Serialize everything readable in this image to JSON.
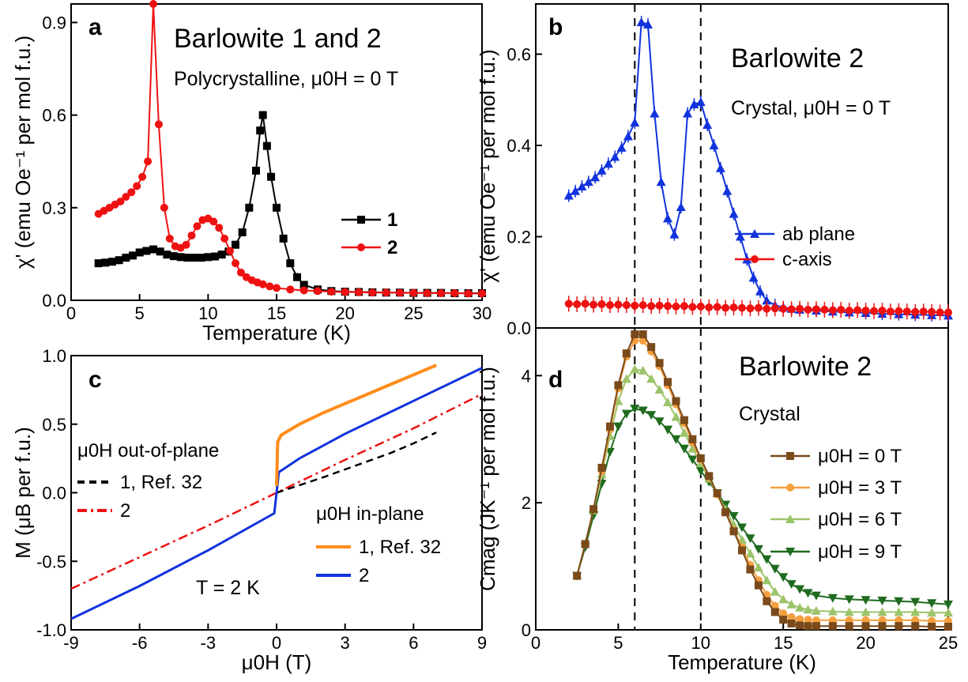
{
  "colors": {
    "red": "#ee1111",
    "black": "#000000",
    "blue": "#1133dd",
    "orange": "#ff8c1a",
    "brown": "#7a4a1a",
    "light_orange": "#f5a040",
    "light_green": "#9cc46a",
    "dark_green": "#1f6b1f"
  },
  "chart_data": [
    {
      "panel": "a",
      "type": "line",
      "title": "Barlowite 1 and 2",
      "subtitle": "Polycrystalline,  μ0H = 0 T",
      "xlabel": "Temperature (K)",
      "ylabel": "χ' (emu Oe⁻¹ per mol f.u.)",
      "xlim": [
        0,
        30
      ],
      "ylim": [
        0,
        0.96
      ],
      "xticks": [
        0,
        5,
        10,
        15,
        20,
        25,
        30
      ],
      "yticks": [
        0.0,
        0.3,
        0.6,
        0.9
      ],
      "xtick_labels": [
        "0",
        "5",
        "10",
        "15",
        "20",
        "25",
        "30"
      ],
      "ytick_labels": [
        "0.0",
        "0.3",
        "0.6",
        "0.9"
      ],
      "legend_position": "right",
      "series": [
        {
          "name": "1",
          "color": "black",
          "marker": "square",
          "x": [
            2,
            2.5,
            3,
            3.5,
            4,
            4.5,
            5,
            5.5,
            6,
            6.5,
            7,
            7.5,
            8,
            8.5,
            9,
            9.5,
            10,
            10.5,
            11,
            11.5,
            12,
            12.5,
            13,
            13.5,
            13.8,
            14,
            14.3,
            14.6,
            15,
            15.5,
            16,
            16.5,
            17,
            18,
            19,
            20,
            21,
            22,
            23,
            24,
            25,
            26,
            27,
            28,
            29,
            30
          ],
          "y": [
            0.12,
            0.122,
            0.125,
            0.13,
            0.138,
            0.145,
            0.155,
            0.16,
            0.165,
            0.158,
            0.148,
            0.143,
            0.14,
            0.138,
            0.138,
            0.138,
            0.14,
            0.142,
            0.148,
            0.158,
            0.18,
            0.22,
            0.3,
            0.42,
            0.55,
            0.6,
            0.5,
            0.4,
            0.3,
            0.2,
            0.12,
            0.075,
            0.05,
            0.035,
            0.03,
            0.028,
            0.027,
            0.026,
            0.025,
            0.025,
            0.024,
            0.024,
            0.024,
            0.023,
            0.023,
            0.023
          ]
        },
        {
          "name": "2",
          "color": "red",
          "marker": "circle",
          "x": [
            2,
            2.4,
            2.8,
            3.2,
            3.6,
            4,
            4.4,
            4.8,
            5.2,
            5.6,
            6,
            6.4,
            6.8,
            7.2,
            7.6,
            8,
            8.4,
            8.8,
            9.2,
            9.6,
            10,
            10.4,
            10.8,
            11.2,
            11.6,
            12,
            12.4,
            12.8,
            13.2,
            13.6,
            14,
            14.5,
            15,
            16,
            17,
            18,
            19,
            20,
            21,
            22,
            23,
            24,
            25,
            26,
            27,
            28,
            29,
            30
          ],
          "y": [
            0.28,
            0.29,
            0.3,
            0.31,
            0.32,
            0.335,
            0.35,
            0.37,
            0.4,
            0.45,
            0.96,
            0.57,
            0.3,
            0.2,
            0.175,
            0.17,
            0.18,
            0.21,
            0.24,
            0.26,
            0.265,
            0.255,
            0.235,
            0.2,
            0.16,
            0.12,
            0.09,
            0.075,
            0.065,
            0.058,
            0.052,
            0.045,
            0.04,
            0.035,
            0.032,
            0.03,
            0.028,
            0.027,
            0.026,
            0.025,
            0.025,
            0.024,
            0.024,
            0.023,
            0.023,
            0.023,
            0.022,
            0.022
          ]
        }
      ]
    },
    {
      "panel": "b",
      "type": "line",
      "title": "Barlowite 2",
      "subtitle": "Crystal,  μ0H = 0 T",
      "xlabel": "",
      "ylabel": "χ' (emu Oe⁻¹ per mol f.u.)",
      "xlim": [
        0,
        25
      ],
      "ylim": [
        0,
        0.71
      ],
      "yticks": [
        0.0,
        0.2,
        0.4,
        0.6
      ],
      "ytick_labels": [
        "0.0",
        "0.2",
        "0.4",
        "0.6"
      ],
      "dashed_vlines": [
        6,
        10
      ],
      "legend_position": "bottom-right",
      "series": [
        {
          "name": "ab plane",
          "color": "blue",
          "marker": "triangle",
          "x": [
            2,
            2.4,
            2.8,
            3.2,
            3.6,
            4,
            4.4,
            4.8,
            5.2,
            5.6,
            6,
            6.4,
            6.8,
            7.2,
            7.6,
            8,
            8.4,
            8.8,
            9.2,
            9.6,
            10,
            10.4,
            10.8,
            11.2,
            11.6,
            12,
            12.4,
            12.8,
            13.2,
            13.6,
            14,
            14.5,
            15,
            15.5,
            16,
            17,
            18,
            19,
            20,
            21,
            22,
            23,
            24,
            25
          ],
          "y": [
            0.29,
            0.3,
            0.31,
            0.32,
            0.33,
            0.345,
            0.36,
            0.375,
            0.395,
            0.42,
            0.45,
            0.67,
            0.665,
            0.47,
            0.32,
            0.24,
            0.205,
            0.265,
            0.47,
            0.49,
            0.495,
            0.445,
            0.4,
            0.35,
            0.3,
            0.25,
            0.2,
            0.15,
            0.11,
            0.08,
            0.06,
            0.05,
            0.045,
            0.042,
            0.04,
            0.038,
            0.036,
            0.034,
            0.033,
            0.031,
            0.03,
            0.029,
            0.028,
            0.027
          ]
        },
        {
          "name": "c-axis",
          "color": "red",
          "marker": "circle",
          "x": [
            2,
            2.5,
            3,
            3.5,
            4,
            4.5,
            5,
            5.5,
            6,
            6.5,
            7,
            7.5,
            8,
            8.5,
            9,
            9.5,
            10,
            10.5,
            11,
            11.5,
            12,
            12.5,
            13,
            13.5,
            14,
            14.5,
            15,
            15.5,
            16,
            16.5,
            17,
            17.5,
            18,
            18.5,
            19,
            19.5,
            20,
            20.5,
            21,
            21.5,
            22,
            22.5,
            23,
            23.5,
            24,
            24.5,
            25
          ],
          "y": [
            0.053,
            0.052,
            0.053,
            0.051,
            0.052,
            0.05,
            0.051,
            0.05,
            0.049,
            0.05,
            0.048,
            0.049,
            0.048,
            0.047,
            0.048,
            0.046,
            0.047,
            0.045,
            0.046,
            0.044,
            0.045,
            0.044,
            0.043,
            0.044,
            0.042,
            0.043,
            0.042,
            0.041,
            0.042,
            0.04,
            0.041,
            0.04,
            0.039,
            0.04,
            0.038,
            0.039,
            0.038,
            0.037,
            0.038,
            0.036,
            0.037,
            0.036,
            0.035,
            0.036,
            0.035,
            0.034,
            0.034
          ]
        }
      ]
    },
    {
      "panel": "c",
      "type": "line",
      "xlabel": "μ0H (T)",
      "ylabel": "M (μB per f.u.)",
      "xlim": [
        -9,
        9
      ],
      "ylim": [
        -1.0,
        1.0
      ],
      "xticks": [
        -9,
        -6,
        -3,
        0,
        3,
        6,
        9
      ],
      "yticks": [
        -1.0,
        -0.5,
        0.0,
        0.5,
        1.0
      ],
      "xtick_labels": [
        "-9",
        "-6",
        "-3",
        "0",
        "3",
        "6",
        "9"
      ],
      "ytick_labels": [
        "-1.0",
        "-0.5",
        "0.0",
        "0.5",
        "1.0"
      ],
      "annotation": "T = 2 K",
      "legend_groups": [
        {
          "title": "μ0H out-of-plane",
          "entries": [
            "1, Ref. 32",
            "2"
          ]
        },
        {
          "title": "μ0H in-plane",
          "entries": [
            "1, Ref. 32",
            "2"
          ]
        }
      ],
      "series": [
        {
          "name": "1, Ref. 32 (out-of-plane)",
          "color": "black",
          "style": "dashed",
          "x": [
            0,
            1,
            2,
            3,
            4,
            5,
            6,
            7
          ],
          "y": [
            0.0,
            0.055,
            0.11,
            0.17,
            0.23,
            0.29,
            0.36,
            0.44
          ]
        },
        {
          "name": "2 (out-of-plane)",
          "color": "red",
          "style": "dashdot",
          "x": [
            -9,
            -6,
            -3,
            0,
            3,
            6,
            9
          ],
          "y": [
            -0.7,
            -0.47,
            -0.24,
            0.0,
            0.24,
            0.47,
            0.72
          ]
        },
        {
          "name": "1, Ref. 32 (in-plane)",
          "color": "orange",
          "style": "solid",
          "x": [
            0,
            0.05,
            0.2,
            1,
            2,
            3,
            4,
            5,
            6,
            7
          ],
          "y": [
            0.05,
            0.37,
            0.42,
            0.5,
            0.58,
            0.65,
            0.72,
            0.79,
            0.86,
            0.93
          ]
        },
        {
          "name": "2 (in-plane)",
          "color": "blue",
          "style": "solid",
          "x": [
            -9,
            -6,
            -3,
            -0.1,
            0.1,
            1,
            3,
            6,
            9
          ],
          "y": [
            -0.92,
            -0.68,
            -0.42,
            -0.15,
            0.15,
            0.25,
            0.43,
            0.67,
            0.91
          ]
        }
      ]
    },
    {
      "panel": "d",
      "type": "line",
      "title": "Barlowite 2",
      "subtitle": "Crystal",
      "xlabel": "Temperature (K)",
      "ylabel": "Cmag (JK⁻¹ per mol f.u.)",
      "xlim": [
        0,
        25
      ],
      "ylim": [
        0,
        4.75
      ],
      "xticks": [
        0,
        5,
        10,
        15,
        20,
        25
      ],
      "yticks": [
        0,
        2,
        4
      ],
      "xtick_labels": [
        "0",
        "5",
        "10",
        "15",
        "20",
        "25"
      ],
      "ytick_labels": [
        "0",
        "2",
        "4"
      ],
      "dashed_vlines": [
        6,
        10
      ],
      "legend_position": "right",
      "series": [
        {
          "name": "μ0H = 0 T",
          "color": "brown",
          "marker": "square",
          "x": [
            2.5,
            3,
            3.5,
            4,
            4.5,
            5,
            5.5,
            6,
            6.5,
            7,
            7.5,
            8,
            8.5,
            9,
            9.5,
            10,
            10.5,
            11,
            11.5,
            12,
            12.5,
            13,
            13.5,
            14,
            14.5,
            15,
            15.5,
            16,
            16.5,
            17,
            18,
            19,
            20,
            21,
            22,
            23,
            24,
            25
          ],
          "y": [
            0.85,
            1.35,
            1.9,
            2.55,
            3.2,
            3.85,
            4.35,
            4.65,
            4.65,
            4.45,
            4.2,
            3.9,
            3.6,
            3.3,
            3.0,
            2.7,
            2.42,
            2.15,
            1.85,
            1.55,
            1.25,
            0.95,
            0.7,
            0.45,
            0.28,
            0.16,
            0.1,
            0.07,
            0.06,
            0.06,
            0.06,
            0.06,
            0.06,
            0.06,
            0.06,
            0.06,
            0.05,
            0.05
          ]
        },
        {
          "name": "μ0H = 3 T",
          "color": "light_orange",
          "marker": "circle",
          "x": [
            2.5,
            3,
            3.5,
            4,
            4.5,
            5,
            5.5,
            6,
            6.5,
            7,
            7.5,
            8,
            8.5,
            9,
            9.5,
            10,
            10.5,
            11,
            11.5,
            12,
            12.5,
            13,
            13.5,
            14,
            14.5,
            15,
            15.5,
            16,
            16.5,
            17,
            18,
            19,
            20,
            21,
            22,
            23,
            24,
            25
          ],
          "y": [
            0.85,
            1.35,
            1.9,
            2.5,
            3.15,
            3.8,
            4.3,
            4.55,
            4.55,
            4.38,
            4.15,
            3.85,
            3.55,
            3.25,
            2.95,
            2.68,
            2.4,
            2.13,
            1.85,
            1.57,
            1.3,
            1.02,
            0.78,
            0.55,
            0.38,
            0.26,
            0.2,
            0.17,
            0.16,
            0.15,
            0.15,
            0.15,
            0.15,
            0.15,
            0.15,
            0.15,
            0.14,
            0.14
          ]
        },
        {
          "name": "μ0H = 6 T",
          "color": "light_green",
          "marker": "triangle",
          "x": [
            2.5,
            3,
            3.5,
            4,
            4.5,
            5,
            5.5,
            6,
            6.5,
            7,
            7.5,
            8,
            8.5,
            9,
            9.5,
            10,
            10.5,
            11,
            11.5,
            12,
            12.5,
            13,
            13.5,
            14,
            14.5,
            15,
            15.5,
            16,
            16.5,
            17,
            18,
            19,
            20,
            21,
            22,
            23,
            24,
            25
          ],
          "y": [
            0.85,
            1.35,
            1.88,
            2.45,
            3.05,
            3.6,
            3.95,
            4.1,
            4.08,
            3.95,
            3.78,
            3.58,
            3.35,
            3.1,
            2.85,
            2.62,
            2.38,
            2.15,
            1.9,
            1.65,
            1.42,
            1.2,
            0.98,
            0.78,
            0.6,
            0.48,
            0.4,
            0.35,
            0.32,
            0.3,
            0.29,
            0.28,
            0.28,
            0.28,
            0.28,
            0.28,
            0.27,
            0.27
          ]
        },
        {
          "name": "μ0H = 9 T",
          "color": "dark_green",
          "marker": "triangle-down",
          "x": [
            2.5,
            3,
            3.5,
            4,
            4.5,
            5,
            5.5,
            6,
            6.5,
            7,
            7.5,
            8,
            8.5,
            9,
            9.5,
            10,
            10.5,
            11,
            11.5,
            12,
            12.5,
            13,
            13.5,
            14,
            14.5,
            15,
            15.5,
            16,
            16.5,
            17,
            18,
            19,
            20,
            21,
            22,
            23,
            24,
            25
          ],
          "y": [
            0.85,
            1.3,
            1.8,
            2.3,
            2.8,
            3.2,
            3.4,
            3.48,
            3.45,
            3.38,
            3.28,
            3.15,
            3.0,
            2.85,
            2.68,
            2.5,
            2.33,
            2.15,
            1.97,
            1.79,
            1.61,
            1.44,
            1.27,
            1.11,
            0.96,
            0.83,
            0.72,
            0.64,
            0.58,
            0.54,
            0.5,
            0.48,
            0.47,
            0.46,
            0.45,
            0.44,
            0.42,
            0.4
          ]
        }
      ]
    }
  ]
}
